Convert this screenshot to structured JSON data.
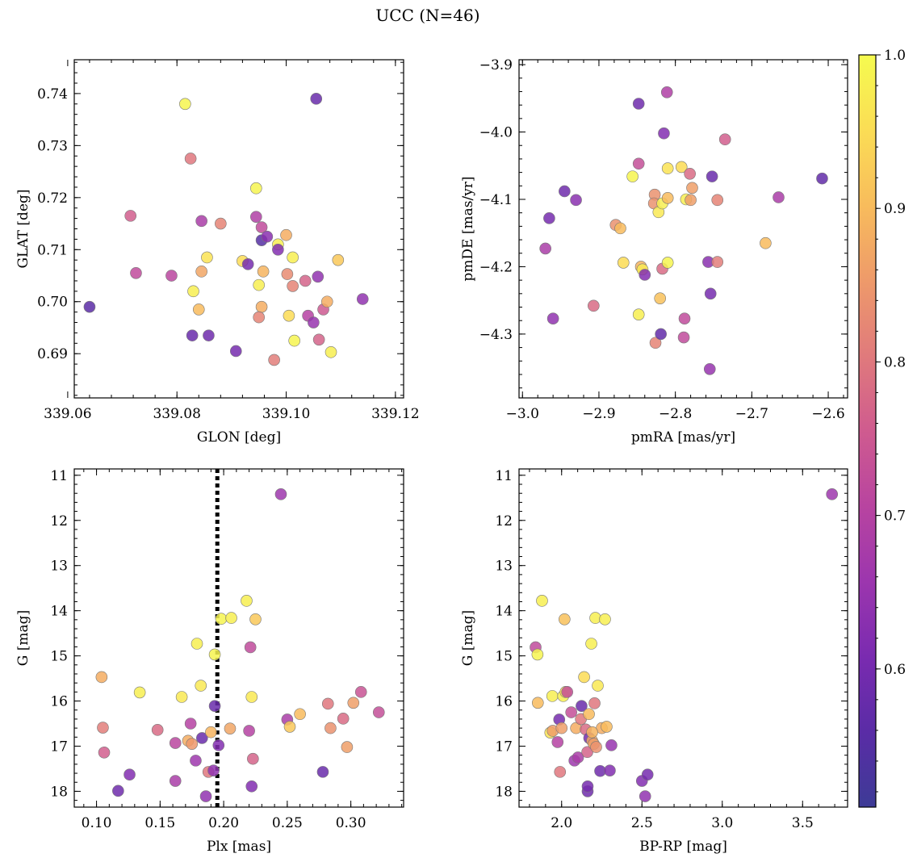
{
  "figure_title": "UCC (N=46)",
  "chart_data": [
    {
      "type": "scatter",
      "id": "p1",
      "xlabel": "GLON [deg]",
      "ylabel": "GLAT [deg]",
      "xlim": [
        339.0612,
        339.1215
      ],
      "ylim": [
        0.6815,
        0.7465
      ],
      "xticks": [
        339.06,
        339.08,
        339.1,
        339.12
      ],
      "xtick_labels": [
        "339.06",
        "339.08",
        "339.10",
        "339.12"
      ],
      "yticks": [
        0.69,
        0.7,
        0.71,
        0.72,
        0.73,
        0.74
      ],
      "ytick_labels": [
        "0.69",
        "0.70",
        "0.71",
        "0.72",
        "0.73",
        "0.74"
      ],
      "points": [
        [
          339.064,
          0.699,
          0.56
        ],
        [
          339.0715,
          0.7165,
          0.76
        ],
        [
          339.0725,
          0.7055,
          0.72
        ],
        [
          339.079,
          0.705,
          0.71
        ],
        [
          339.0815,
          0.738,
          0.99
        ],
        [
          339.0825,
          0.7275,
          0.8
        ],
        [
          339.0845,
          0.7155,
          0.68
        ],
        [
          339.0855,
          0.7085,
          0.96
        ],
        [
          339.088,
          0.715,
          0.82
        ],
        [
          339.083,
          0.702,
          0.98
        ],
        [
          339.084,
          0.6985,
          0.9
        ],
        [
          339.0845,
          0.7058,
          0.87
        ],
        [
          339.0828,
          0.6935,
          0.58
        ],
        [
          339.0858,
          0.6935,
          0.59
        ],
        [
          339.0908,
          0.6905,
          0.6
        ],
        [
          339.092,
          0.7078,
          0.95
        ],
        [
          339.093,
          0.7072,
          0.6
        ],
        [
          339.0945,
          0.7218,
          0.99
        ],
        [
          339.095,
          0.7032,
          0.98
        ],
        [
          339.0945,
          0.7163,
          0.69
        ],
        [
          339.0955,
          0.7143,
          0.72
        ],
        [
          339.0955,
          0.7118,
          0.55
        ],
        [
          339.0958,
          0.7058,
          0.89
        ],
        [
          339.0955,
          0.699,
          0.88
        ],
        [
          339.095,
          0.697,
          0.82
        ],
        [
          339.0965,
          0.7125,
          0.63
        ],
        [
          339.0985,
          0.711,
          0.98
        ],
        [
          339.0985,
          0.71,
          0.62
        ],
        [
          339.0978,
          0.6888,
          0.81
        ],
        [
          339.1,
          0.7128,
          0.88
        ],
        [
          339.1002,
          0.7053,
          0.83
        ],
        [
          339.1005,
          0.6973,
          0.95
        ],
        [
          339.1012,
          0.7085,
          0.98
        ],
        [
          339.1012,
          0.703,
          0.82
        ],
        [
          339.1015,
          0.6925,
          0.99
        ],
        [
          339.1035,
          0.704,
          0.77
        ],
        [
          339.104,
          0.6973,
          0.7
        ],
        [
          339.1055,
          0.739,
          0.58
        ],
        [
          339.1058,
          0.7048,
          0.64
        ],
        [
          339.105,
          0.696,
          0.65
        ],
        [
          339.106,
          0.6927,
          0.77
        ],
        [
          339.1068,
          0.6985,
          0.75
        ],
        [
          339.1075,
          0.7,
          0.88
        ],
        [
          339.1082,
          0.6903,
          0.98
        ],
        [
          339.1095,
          0.708,
          0.92
        ],
        [
          339.114,
          0.7005,
          0.64
        ]
      ]
    },
    {
      "type": "scatter",
      "id": "p2",
      "xlabel": "pmRA [mas/yr]",
      "ylabel": "pmDE [mas/yr]",
      "xlim": [
        -3.0045,
        -2.5747
      ],
      "ylim": [
        -4.3948,
        -3.8927
      ],
      "xticks": [
        -3.0,
        -2.9,
        -2.8,
        -2.7,
        -2.6
      ],
      "xtick_labels": [
        "−3.0",
        "−2.9",
        "−2.8",
        "−2.7",
        "−2.6"
      ],
      "yticks": [
        -4.3,
        -4.2,
        -4.1,
        -4.0,
        -3.9
      ],
      "ytick_labels": [
        "−4.3",
        "−4.2",
        "−4.1",
        "−4.0",
        "−3.9"
      ],
      "points": [
        [
          -2.97,
          -4.173,
          0.68
        ],
        [
          -2.965,
          -4.128,
          0.6
        ],
        [
          -2.96,
          -4.277,
          0.64
        ],
        [
          -2.945,
          -4.088,
          0.59
        ],
        [
          -2.93,
          -4.101,
          0.63
        ],
        [
          -2.907,
          -4.258,
          0.78
        ],
        [
          -2.878,
          -4.138,
          0.84
        ],
        [
          -2.872,
          -4.143,
          0.9
        ],
        [
          -2.868,
          -4.194,
          0.95
        ],
        [
          -2.856,
          -4.066,
          0.99
        ],
        [
          -2.848,
          -4.271,
          0.98
        ],
        [
          -2.845,
          -4.2,
          0.89
        ],
        [
          -2.843,
          -4.204,
          0.97
        ],
        [
          -2.848,
          -4.047,
          0.73
        ],
        [
          -2.848,
          -3.958,
          0.59
        ],
        [
          -2.84,
          -4.212,
          0.62
        ],
        [
          -2.827,
          -4.093,
          0.84
        ],
        [
          -2.828,
          -4.106,
          0.84
        ],
        [
          -2.826,
          -4.313,
          0.82
        ],
        [
          -2.822,
          -4.119,
          0.97
        ],
        [
          -2.82,
          -4.247,
          0.91
        ],
        [
          -2.817,
          -4.106,
          0.98
        ],
        [
          -2.819,
          -4.3,
          0.57
        ],
        [
          -2.817,
          -4.203,
          0.78
        ],
        [
          -2.815,
          -4.002,
          0.62
        ],
        [
          -2.811,
          -3.941,
          0.69
        ],
        [
          -2.81,
          -4.054,
          0.96
        ],
        [
          -2.81,
          -4.098,
          0.9
        ],
        [
          -2.81,
          -4.194,
          0.99
        ],
        [
          -2.792,
          -4.052,
          0.95
        ],
        [
          -2.786,
          -4.1,
          0.98
        ],
        [
          -2.788,
          -4.277,
          0.72
        ],
        [
          -2.789,
          -4.305,
          0.72
        ],
        [
          -2.781,
          -4.062,
          0.78
        ],
        [
          -2.778,
          -4.083,
          0.86
        ],
        [
          -2.78,
          -4.101,
          0.86
        ],
        [
          -2.757,
          -4.193,
          0.63
        ],
        [
          -2.752,
          -4.066,
          0.58
        ],
        [
          -2.754,
          -4.24,
          0.6
        ],
        [
          -2.755,
          -4.352,
          0.65
        ],
        [
          -2.745,
          -4.101,
          0.82
        ],
        [
          -2.745,
          -4.193,
          0.81
        ],
        [
          -2.735,
          -4.011,
          0.76
        ],
        [
          -2.682,
          -4.165,
          0.9
        ],
        [
          -2.665,
          -4.097,
          0.68
        ],
        [
          -2.608,
          -4.069,
          0.57
        ]
      ]
    },
    {
      "type": "scatter",
      "id": "p3",
      "xlabel": "Plx [mas]",
      "ylabel": "G [mag]",
      "xlim": [
        0.0825,
        0.3415
      ],
      "ylim": [
        18.35,
        10.86
      ],
      "xticks": [
        0.1,
        0.15,
        0.2,
        0.25,
        0.3
      ],
      "xtick_labels": [
        "0.10",
        "0.15",
        "0.20",
        "0.25",
        "0.30"
      ],
      "yticks": [
        11,
        12,
        13,
        14,
        15,
        16,
        17,
        18
      ],
      "ytick_labels": [
        "11",
        "12",
        "13",
        "14",
        "15",
        "16",
        "17",
        "18"
      ],
      "vline": 0.195,
      "points": [
        [
          0.104,
          15.47,
          0.88
        ],
        [
          0.105,
          16.59,
          0.81
        ],
        [
          0.106,
          17.14,
          0.76
        ],
        [
          0.117,
          17.99,
          0.59
        ],
        [
          0.126,
          17.63,
          0.62
        ],
        [
          0.134,
          15.81,
          0.98
        ],
        [
          0.148,
          16.64,
          0.78
        ],
        [
          0.162,
          17.77,
          0.68
        ],
        [
          0.162,
          16.93,
          0.71
        ],
        [
          0.167,
          15.91,
          0.97
        ],
        [
          0.172,
          16.88,
          0.88
        ],
        [
          0.174,
          16.5,
          0.7
        ],
        [
          0.175,
          16.95,
          0.85
        ],
        [
          0.179,
          14.73,
          0.98
        ],
        [
          0.178,
          17.32,
          0.66
        ],
        [
          0.182,
          15.66,
          0.97
        ],
        [
          0.183,
          16.82,
          0.58
        ],
        [
          0.186,
          18.11,
          0.64
        ],
        [
          0.188,
          17.57,
          0.8
        ],
        [
          0.19,
          16.69,
          0.89
        ],
        [
          0.192,
          17.54,
          0.64
        ],
        [
          0.193,
          16.11,
          0.58
        ],
        [
          0.193,
          14.97,
          0.99
        ],
        [
          0.196,
          16.98,
          0.62
        ],
        [
          0.198,
          14.18,
          0.99
        ],
        [
          0.206,
          14.16,
          0.98
        ],
        [
          0.205,
          16.61,
          0.87
        ],
        [
          0.218,
          13.78,
          0.98
        ],
        [
          0.22,
          16.66,
          0.7
        ],
        [
          0.221,
          14.81,
          0.72
        ],
        [
          0.222,
          17.89,
          0.62
        ],
        [
          0.222,
          15.91,
          0.97
        ],
        [
          0.223,
          17.28,
          0.77
        ],
        [
          0.225,
          14.19,
          0.92
        ],
        [
          0.245,
          11.42,
          0.66
        ],
        [
          0.25,
          16.41,
          0.68
        ],
        [
          0.252,
          16.57,
          0.92
        ],
        [
          0.26,
          16.29,
          0.9
        ],
        [
          0.278,
          17.57,
          0.58
        ],
        [
          0.282,
          16.06,
          0.8
        ],
        [
          0.284,
          16.6,
          0.84
        ],
        [
          0.294,
          16.39,
          0.78
        ],
        [
          0.297,
          17.02,
          0.86
        ],
        [
          0.302,
          16.04,
          0.86
        ],
        [
          0.308,
          15.8,
          0.74
        ],
        [
          0.322,
          16.25,
          0.73
        ]
      ]
    },
    {
      "type": "scatter",
      "id": "p4",
      "xlabel": "BP-RP [mag]",
      "ylabel": "G [mag]",
      "xlim": [
        1.735,
        3.78
      ],
      "ylim": [
        18.35,
        10.86
      ],
      "xticks": [
        2.0,
        2.5,
        3.0,
        3.5
      ],
      "xtick_labels": [
        "2.0",
        "2.5",
        "3.0",
        "3.5"
      ],
      "yticks": [
        11,
        12,
        13,
        14,
        15,
        16,
        17,
        18
      ],
      "ytick_labels": [
        "11",
        "12",
        "13",
        "14",
        "15",
        "16",
        "17",
        "18"
      ],
      "points": [
        [
          1.838,
          14.81,
          0.72
        ],
        [
          1.85,
          14.97,
          0.99
        ],
        [
          1.852,
          16.04,
          0.9
        ],
        [
          1.878,
          13.78,
          0.98
        ],
        [
          1.93,
          16.7,
          0.96
        ],
        [
          1.942,
          15.89,
          0.98
        ],
        [
          1.945,
          16.66,
          0.86
        ],
        [
          1.975,
          16.91,
          0.7
        ],
        [
          1.985,
          16.41,
          0.6
        ],
        [
          1.99,
          17.57,
          0.8
        ],
        [
          2.0,
          16.6,
          0.86
        ],
        [
          2.01,
          15.89,
          0.98
        ],
        [
          2.018,
          14.19,
          0.91
        ],
        [
          2.025,
          15.8,
          0.95
        ],
        [
          2.035,
          15.8,
          0.73
        ],
        [
          2.06,
          16.25,
          0.73
        ],
        [
          2.08,
          17.32,
          0.66
        ],
        [
          2.09,
          16.6,
          0.88
        ],
        [
          2.102,
          17.25,
          0.68
        ],
        [
          2.12,
          16.4,
          0.8
        ],
        [
          2.124,
          16.11,
          0.58
        ],
        [
          2.14,
          15.47,
          0.95
        ],
        [
          2.15,
          16.63,
          0.78
        ],
        [
          2.16,
          17.13,
          0.77
        ],
        [
          2.162,
          18.0,
          0.59
        ],
        [
          2.162,
          17.89,
          0.6
        ],
        [
          2.17,
          16.29,
          0.9
        ],
        [
          2.172,
          16.82,
          0.6
        ],
        [
          2.185,
          14.73,
          0.98
        ],
        [
          2.19,
          16.88,
          0.87
        ],
        [
          2.2,
          16.95,
          0.86
        ],
        [
          2.205,
          16.05,
          0.8
        ],
        [
          2.21,
          14.16,
          0.98
        ],
        [
          2.215,
          17.02,
          0.84
        ],
        [
          2.225,
          15.66,
          0.97
        ],
        [
          2.24,
          17.55,
          0.59
        ],
        [
          2.25,
          16.6,
          0.88
        ],
        [
          2.27,
          14.19,
          0.98
        ],
        [
          2.28,
          16.57,
          0.9
        ],
        [
          2.3,
          17.54,
          0.62
        ],
        [
          2.31,
          16.98,
          0.65
        ],
        [
          2.5,
          17.77,
          0.62
        ],
        [
          2.52,
          18.11,
          0.64
        ],
        [
          2.535,
          17.63,
          0.6
        ],
        [
          3.683,
          11.42,
          0.66
        ],
        [
          2.19,
          16.69,
          0.89
        ]
      ]
    }
  ],
  "colorbar": {
    "range": [
      0.51,
      1.0
    ],
    "ticks": [
      0.6,
      0.7,
      0.8,
      0.9,
      1.0
    ],
    "tick_labels": [
      "0.6",
      "0.7",
      "0.8",
      "0.9",
      "1.0"
    ],
    "colormap": "plasma",
    "colors": [
      "#3d3b96",
      "#5a2ca6",
      "#7a2bb0",
      "#9c36ae",
      "#b844a0",
      "#cf5b8f",
      "#e07a7c",
      "#ee9a6a",
      "#f8bc5c",
      "#fbdd55",
      "#f5fb4f"
    ]
  }
}
